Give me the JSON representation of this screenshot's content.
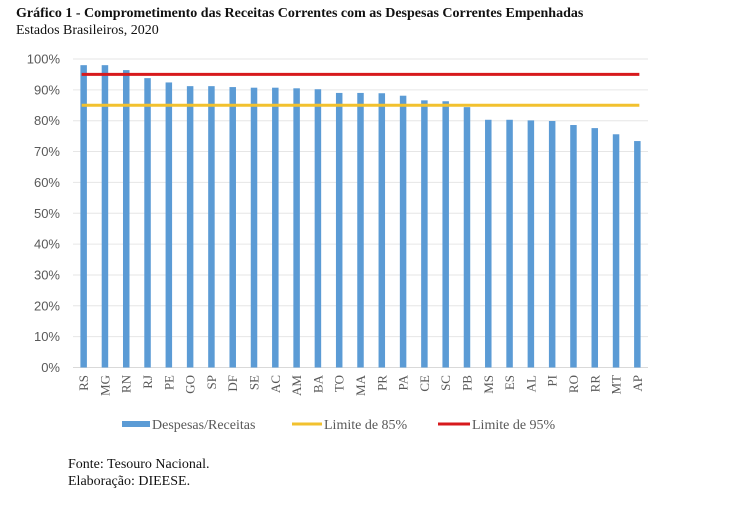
{
  "title": "Gráfico 1 - Comprometimento das Receitas Correntes com as Despesas Correntes Empenhadas",
  "subtitle": "Estados Brasileiros, 2020",
  "footer": {
    "source": "Fonte: Tesouro Nacional.",
    "elaboration": "Elaboração: DIEESE."
  },
  "chart_data": {
    "type": "bar",
    "title": "Gráfico 1 - Comprometimento das Receitas Correntes com as Despesas Correntes Empenhadas",
    "subtitle": "Estados Brasileiros, 2020",
    "xlabel": "",
    "ylabel": "",
    "ylim": [
      0,
      100
    ],
    "yticks": [
      "0%",
      "10%",
      "20%",
      "30%",
      "40%",
      "50%",
      "60%",
      "70%",
      "80%",
      "90%",
      "100%"
    ],
    "grid": true,
    "legend_position": "bottom",
    "categories": [
      "RS",
      "MG",
      "RN",
      "RJ",
      "PE",
      "GO",
      "SP",
      "DF",
      "SE",
      "AC",
      "AM",
      "BA",
      "TO",
      "MA",
      "PR",
      "PA",
      "CE",
      "SC",
      "PB",
      "MS",
      "ES",
      "AL",
      "PI",
      "RO",
      "RR",
      "MT",
      "AP"
    ],
    "series": [
      {
        "name": "Despesas/Receitas",
        "type": "bar",
        "color": "#5B9BD5",
        "values": [
          98.0,
          98.0,
          96.4,
          93.8,
          92.4,
          91.2,
          91.2,
          90.9,
          90.7,
          90.7,
          90.5,
          90.2,
          89.0,
          89.0,
          88.9,
          88.1,
          86.6,
          86.3,
          84.4,
          80.3,
          80.3,
          80.1,
          79.9,
          78.6,
          77.6,
          75.6,
          73.4
        ]
      },
      {
        "name": "Limite de 85%",
        "type": "line",
        "color": "#F2C12E",
        "value": 85
      },
      {
        "name": "Limite de 95%",
        "type": "line",
        "color": "#D7191C",
        "value": 95
      }
    ]
  }
}
